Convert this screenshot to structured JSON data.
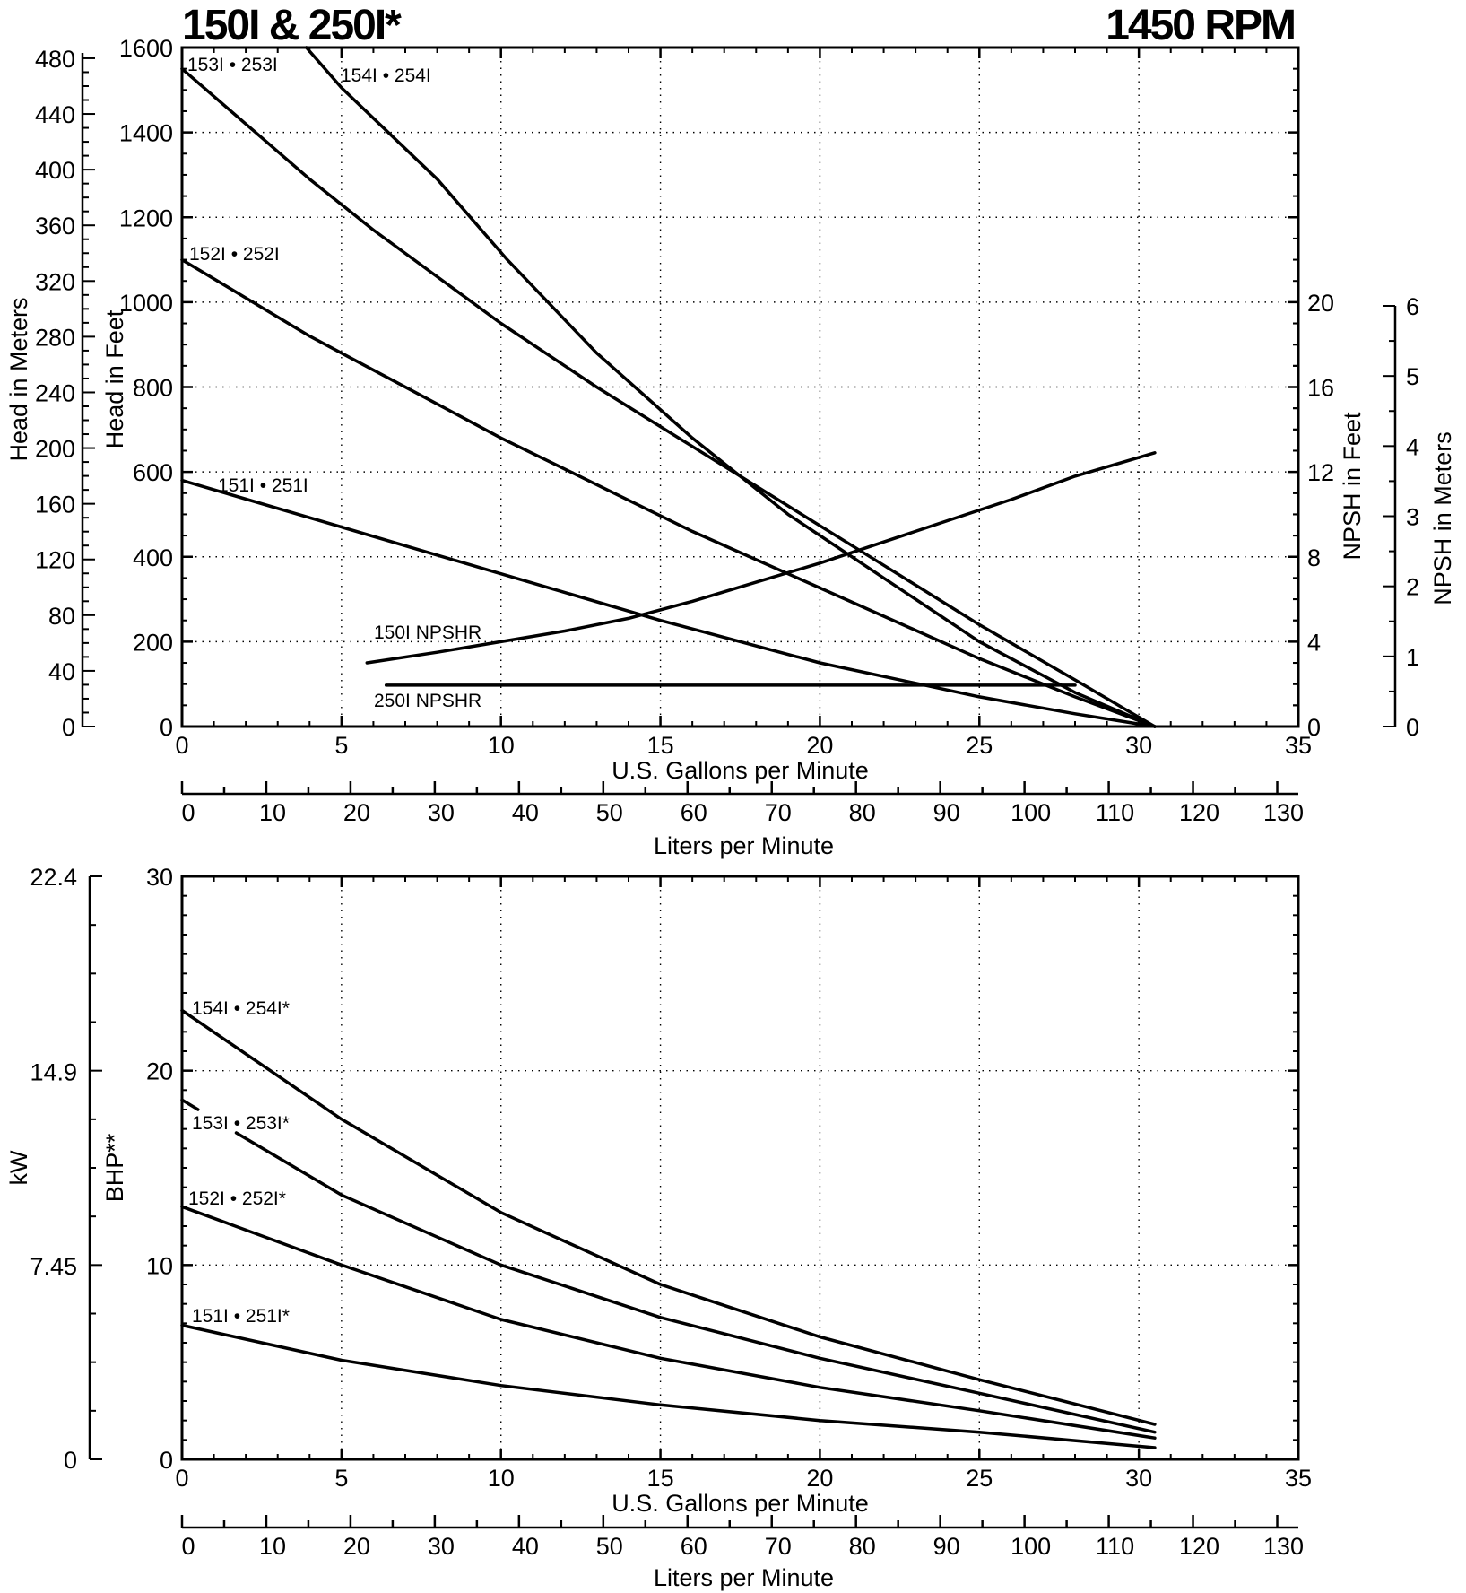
{
  "header": {
    "title_left": "150I & 250I*",
    "title_right": "1450 RPM"
  },
  "colors": {
    "ink": "#000000",
    "background": "#ffffff"
  },
  "chart_data": [
    {
      "type": "line",
      "name": "head-capacity",
      "x_axis": {
        "label": "U.S. Gallons per Minute",
        "range": [
          0,
          35
        ],
        "ticks": [
          "0",
          "5",
          "10",
          "15",
          "20",
          "25",
          "30",
          "35"
        ]
      },
      "x2_axis": {
        "label": "Liters per Minute",
        "range": [
          0,
          132.5
        ],
        "ticks": [
          "0",
          "10",
          "20",
          "30",
          "40",
          "50",
          "60",
          "70",
          "80",
          "90",
          "100",
          "110",
          "120",
          "130"
        ]
      },
      "y_axis_feet": {
        "label": "Head in Feet",
        "range": [
          0,
          1600
        ],
        "ticks": [
          "0",
          "200",
          "400",
          "600",
          "800",
          "1000",
          "1200",
          "1400",
          "1600"
        ]
      },
      "y_axis_meters": {
        "label": "Head in Meters",
        "range": [
          0,
          487.7
        ],
        "ticks": [
          "0",
          "40",
          "80",
          "120",
          "160",
          "200",
          "240",
          "280",
          "320",
          "360",
          "400",
          "440",
          "480"
        ]
      },
      "y_axis_npsh_feet": {
        "label": "NPSH in Feet",
        "range": [
          0,
          20
        ],
        "ticks": [
          "0",
          "4",
          "8",
          "12",
          "16",
          "20"
        ]
      },
      "y_axis_npsh_meters": {
        "label": "NPSH in Meters",
        "range": [
          0,
          6
        ],
        "ticks": [
          "0",
          "1",
          "2",
          "3",
          "4",
          "5",
          "6"
        ]
      },
      "grid": "dotted",
      "series": [
        {
          "name": "154I • 254I",
          "x": [
            3.9,
            5,
            8,
            10.2,
            13,
            16,
            19,
            22,
            25,
            28,
            30.5
          ],
          "y": [
            1600,
            1505,
            1290,
            1100,
            880,
            680,
            500,
            350,
            200,
            80,
            0
          ]
        },
        {
          "name": "153I • 253I",
          "x": [
            0,
            2,
            4,
            6,
            8,
            10,
            13,
            16,
            19,
            22,
            25,
            28,
            30.5
          ],
          "y": [
            1550,
            1420,
            1290,
            1170,
            1060,
            950,
            800,
            660,
            520,
            380,
            240,
            110,
            0
          ]
        },
        {
          "name": "152I • 252I",
          "x": [
            0,
            2,
            4,
            6,
            8,
            10,
            13,
            16,
            19,
            22,
            25,
            28,
            30.5
          ],
          "y": [
            1100,
            1010,
            920,
            840,
            760,
            680,
            570,
            460,
            360,
            260,
            160,
            70,
            0
          ]
        },
        {
          "name": "151I • 251I",
          "x": [
            0,
            5,
            10,
            15,
            20,
            25,
            28,
            30.5
          ],
          "y": [
            580,
            470,
            360,
            250,
            150,
            70,
            30,
            0
          ]
        },
        {
          "name": "150I NPSHR",
          "axis": "npsh_feet",
          "x": [
            5.8,
            8,
            10,
            12,
            14,
            16,
            18,
            20,
            22,
            24,
            26,
            28,
            30.5
          ],
          "y": [
            3.0,
            3.5,
            4.0,
            4.5,
            5.1,
            5.9,
            6.8,
            7.7,
            8.7,
            9.7,
            10.7,
            11.8,
            12.9
          ]
        },
        {
          "name": "250I NPSHR",
          "axis": "npsh_feet",
          "x": [
            6.4,
            28
          ],
          "y": [
            1.95,
            1.95
          ]
        }
      ]
    },
    {
      "type": "line",
      "name": "power",
      "x_axis": {
        "label": "U.S. Gallons per Minute",
        "range": [
          0,
          35
        ],
        "ticks": [
          "0",
          "5",
          "10",
          "15",
          "20",
          "25",
          "30",
          "35"
        ]
      },
      "x2_axis": {
        "label": "Liters per Minute",
        "range": [
          0,
          132.5
        ],
        "ticks": [
          "0",
          "10",
          "20",
          "30",
          "40",
          "50",
          "60",
          "70",
          "80",
          "90",
          "100",
          "110",
          "120",
          "130"
        ]
      },
      "y_axis_bhp": {
        "label": "BHP**",
        "range": [
          0,
          30
        ],
        "ticks": [
          "0",
          "10",
          "20",
          "30"
        ]
      },
      "y_axis_kw": {
        "label": "kW",
        "range": [
          0,
          22.4
        ],
        "ticks": [
          "0",
          "7.45",
          "14.9",
          "22.4"
        ]
      },
      "grid": "dotted",
      "series": [
        {
          "name": "154I • 254I*",
          "x": [
            0,
            5,
            10,
            15,
            20,
            25,
            30.5
          ],
          "y": [
            23.1,
            17.5,
            12.7,
            9.0,
            6.3,
            4.1,
            1.8
          ]
        },
        {
          "name": "153I • 253I*",
          "x": [
            1.7,
            5,
            10,
            15,
            20,
            25,
            30.5
          ],
          "y": [
            16.8,
            13.6,
            10.0,
            7.3,
            5.2,
            3.4,
            1.4
          ]
        },
        {
          "name": "152I • 252I*",
          "x": [
            0,
            5,
            10,
            15,
            20,
            25,
            30.5
          ],
          "y": [
            13.0,
            10.0,
            7.2,
            5.2,
            3.7,
            2.5,
            1.1
          ]
        },
        {
          "name": "151I • 251I*",
          "x": [
            0,
            5,
            10,
            15,
            20,
            25,
            30.5
          ],
          "y": [
            6.9,
            5.1,
            3.8,
            2.8,
            2.0,
            1.4,
            0.6
          ]
        }
      ]
    }
  ]
}
